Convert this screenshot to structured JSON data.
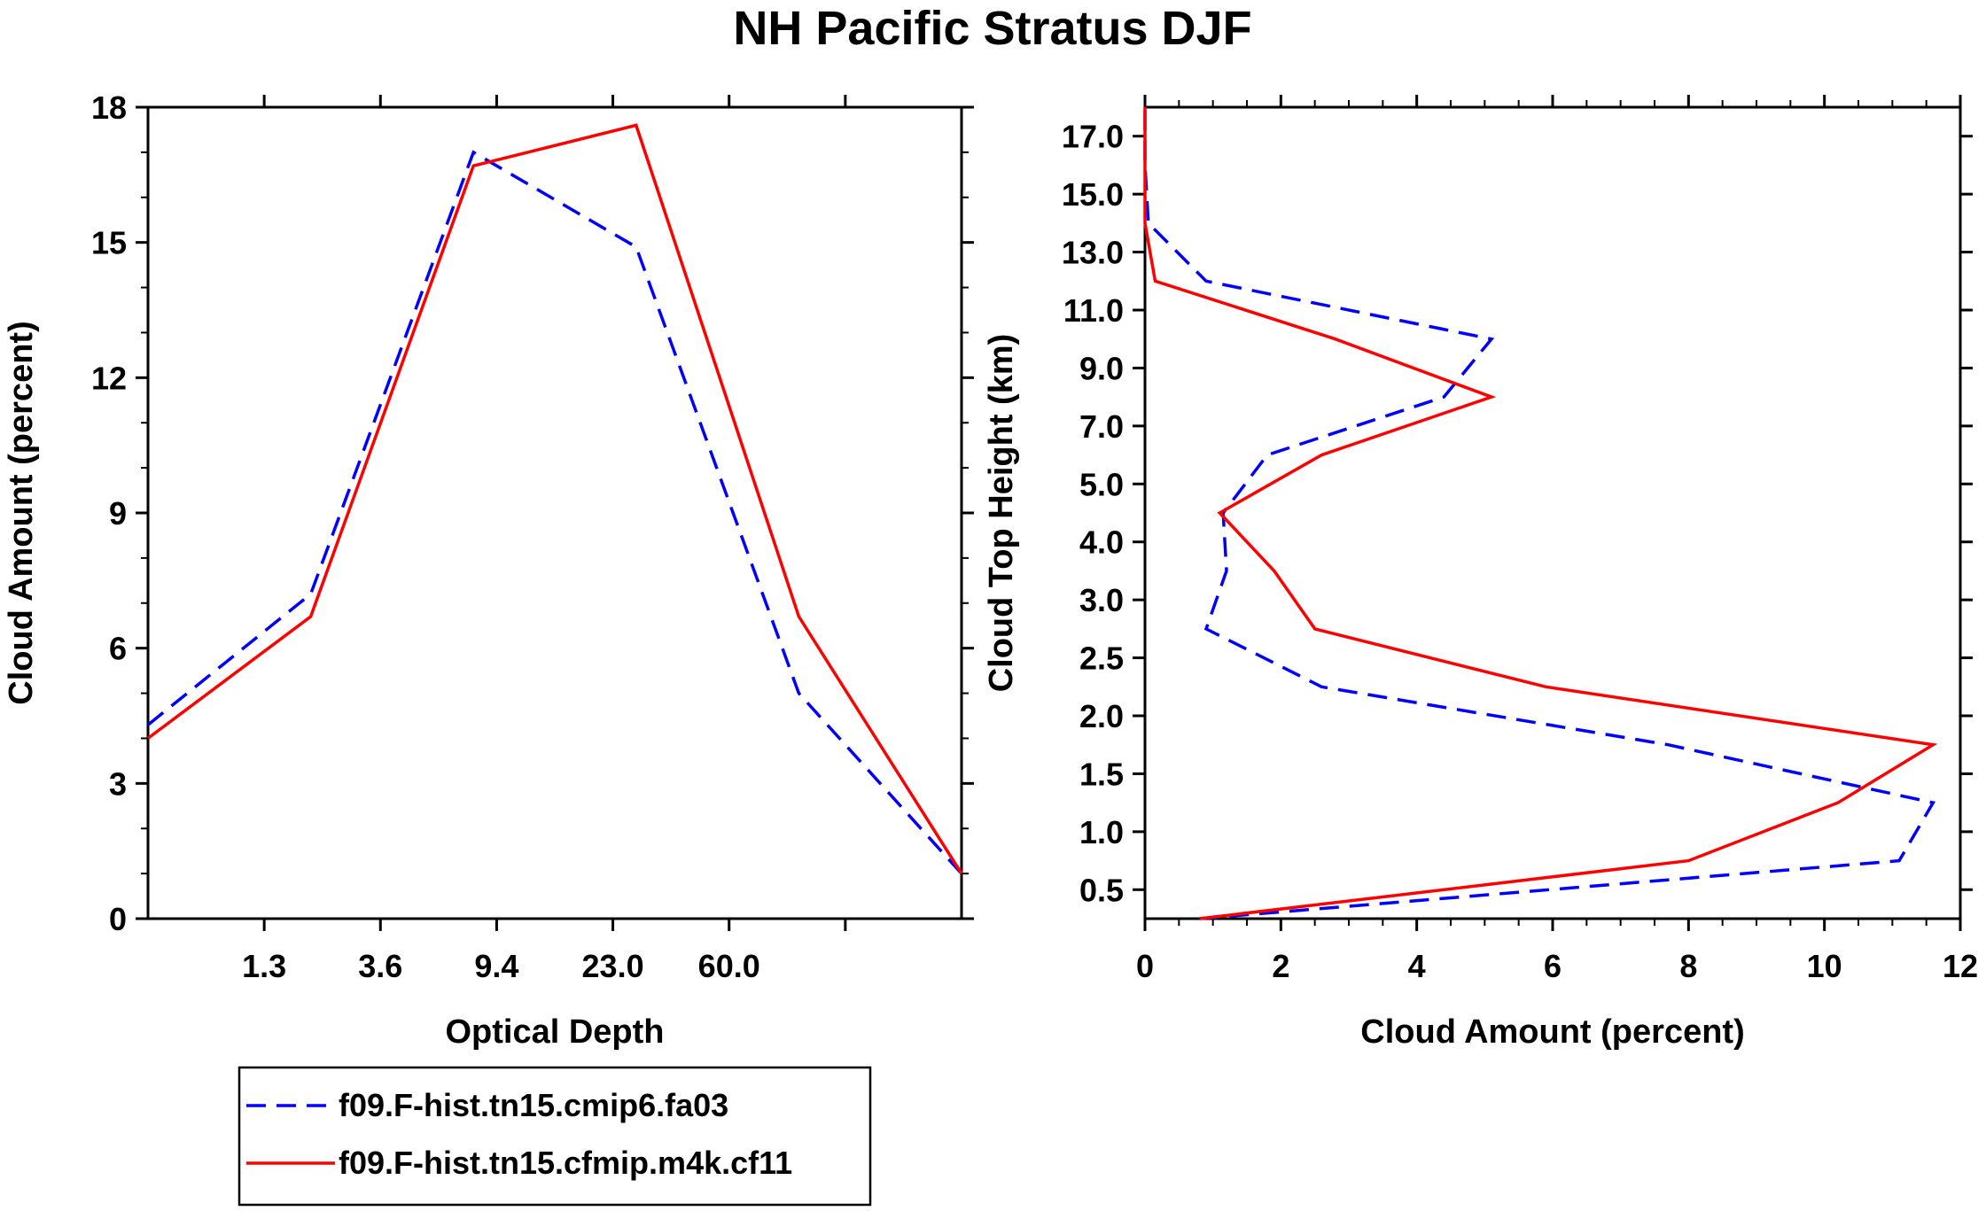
{
  "title": "NH Pacific Stratus DJF",
  "colors": {
    "series_a": "#0000ff",
    "series_b": "#ff0000",
    "axis": "#000000"
  },
  "chart_data": [
    {
      "type": "line",
      "xlabel": "Optical Depth",
      "ylabel": "Cloud Amount (percent)",
      "xlim": [
        0,
        7
      ],
      "ylim": [
        0,
        18
      ],
      "xtick_positions": [
        1,
        2,
        3,
        4,
        5,
        6
      ],
      "xtick_labels": [
        "1.3",
        "3.6",
        "9.4",
        "23.0",
        "60.0"
      ],
      "xtick_labeled_positions": [
        1,
        2,
        3,
        4,
        5
      ],
      "ytick_values": [
        0,
        3,
        6,
        9,
        12,
        15,
        18
      ],
      "ytick_labels": [
        "0",
        "3",
        "6",
        "9",
        "12",
        "15",
        "18"
      ],
      "x": [
        0,
        1,
        2,
        3,
        4,
        5,
        6
      ],
      "series": [
        {
          "name": "f09.F-hist.tn15.cmip6.fa03",
          "style": "dashed",
          "values": [
            4.3,
            7.2,
            17.0,
            14.9,
            5.0,
            1.0,
            null
          ]
        },
        {
          "name": "f09.F-hist.tn15.cfmip.m4k.cf11",
          "style": "solid",
          "values": [
            4.0,
            6.7,
            16.7,
            17.6,
            6.7,
            1.0,
            null
          ]
        }
      ],
      "x_plot": [
        0,
        1,
        2,
        3,
        4,
        5
      ],
      "x_offsets_note": "points plotted at bin centers"
    },
    {
      "type": "line",
      "xlabel": "Cloud Amount (percent)",
      "ylabel": "Cloud Top Height (km)",
      "xlim": [
        0,
        12
      ],
      "ylim_levels": 14,
      "xtick_values": [
        0,
        2,
        4,
        6,
        8,
        10,
        12
      ],
      "xtick_labels": [
        "0",
        "2",
        "4",
        "6",
        "8",
        "10",
        "12"
      ],
      "ytick_labels": [
        "0.5",
        "1.0",
        "1.5",
        "2.0",
        "2.5",
        "3.0",
        "4.0",
        "5.0",
        "7.0",
        "9.0",
        "11.0",
        "13.0",
        "15.0",
        "17.0"
      ],
      "series": [
        {
          "name": "f09.F-hist.tn15.cmip6.fa03",
          "style": "dashed",
          "values": [
            0.8,
            11.1,
            11.6,
            7.7,
            2.6,
            0.9,
            1.2,
            1.15,
            1.8,
            4.4,
            5.1,
            0.9,
            0.05,
            0.0,
            0.0
          ]
        },
        {
          "name": "f09.F-hist.tn15.cfmip.m4k.cf11",
          "style": "solid",
          "values": [
            0.8,
            8.0,
            10.2,
            11.6,
            5.9,
            2.5,
            1.9,
            1.1,
            2.6,
            5.1,
            2.8,
            0.15,
            0.0,
            0.0,
            0.0
          ]
        }
      ]
    }
  ],
  "legend": {
    "entries": [
      {
        "label": "f09.F-hist.tn15.cmip6.fa03",
        "style": "dashed"
      },
      {
        "label": "f09.F-hist.tn15.cfmip.m4k.cf11",
        "style": "solid"
      }
    ]
  }
}
